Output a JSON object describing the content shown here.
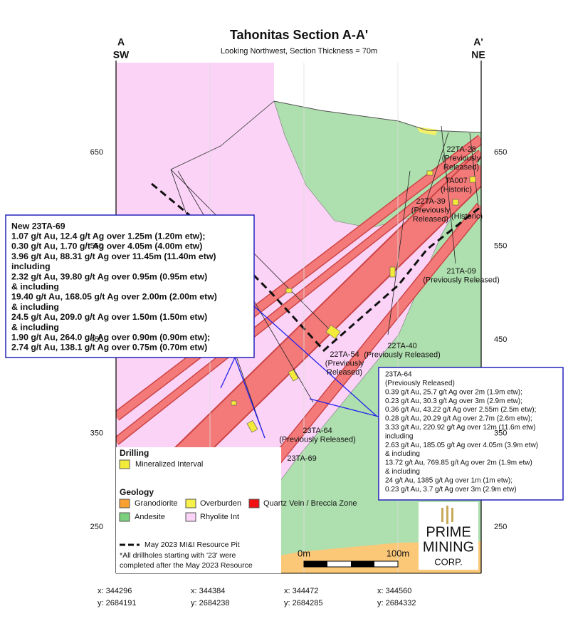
{
  "title": "Tahonitas Section A-A'",
  "subtitle": "Looking Northwest, Section Thickness = 70m",
  "section_ends": {
    "left": {
      "label": "A",
      "direction": "SW"
    },
    "right": {
      "label": "A'",
      "direction": "NE"
    }
  },
  "elevations": [
    "650",
    "550",
    "450",
    "350",
    "250"
  ],
  "coordinates": [
    {
      "x": "x: 344296",
      "y": "y: 2684191"
    },
    {
      "x": "x: 344384",
      "y": "y: 2684238"
    },
    {
      "x": "x: 344472",
      "y": "y: 2684285"
    },
    {
      "x": "x: 344560",
      "y": "y: 2684332"
    }
  ],
  "drill_holes": [
    {
      "lines": [
        "22TA-28",
        "(Previously",
        "Released)"
      ]
    },
    {
      "lines": [
        "TA007",
        "(Historic)"
      ]
    },
    {
      "lines": [
        "22TA-39",
        "(Previously",
        "Released)"
      ]
    },
    {
      "lines": [
        "(Historic)"
      ]
    },
    {
      "lines": [
        "21TA-09",
        "(Previously Released)"
      ]
    },
    {
      "lines": [
        "22TA-40",
        "(Previously Released)"
      ]
    },
    {
      "lines": [
        "22TA-54",
        "(Previously",
        "Released)"
      ]
    },
    {
      "lines": [
        "23TA-64",
        "(Previously Released)"
      ]
    },
    {
      "lines": [
        "23TA-69"
      ]
    }
  ],
  "callouts": [
    {
      "lines": [
        {
          "text": "New 23TA-69",
          "color": "#000000"
        },
        {
          "text": "1.07 g/t Au, 12.4 g/t Ag over 1.25m (1.20m etw);",
          "color": "#000000"
        },
        {
          "text": "0.30 g/t Au, 1.70 g/t Ag over 4.05m (4.00m etw)",
          "color": "#000000"
        },
        {
          "text": "3.96 g/t Au, 88.31 g/t Ag over 11.45m (11.40m etw)",
          "color": "#e00000"
        },
        {
          "text": "including",
          "color": "#e00000"
        },
        {
          "text": "2.32 g/t Au, 39.80 g/t Ag over 0.95m (0.95m etw)",
          "color": "#e00000"
        },
        {
          "text": "& including",
          "color": "#e00000"
        },
        {
          "text": "19.40 g/t Au, 168.05 g/t Ag over 2.00m (2.00m etw)",
          "color": "#e00000"
        },
        {
          "text": "& including",
          "color": "#e00000"
        },
        {
          "text": "24.5 g/t Au, 209.0 g/t Ag over 1.50m (1.50m etw)",
          "color": "#e00000"
        },
        {
          "text": "& including",
          "color": "#e00000"
        },
        {
          "text": "1.90 g/t Au, 264.0 g/t Ag over 0.90m (0.90m etw);",
          "color": "#e00000"
        },
        {
          "text": "2.74 g/t Au, 138.1 g/t Ag over 0.75m (0.70m etw)",
          "color": "#000000"
        }
      ]
    },
    {
      "lines": [
        {
          "text": "23TA-64",
          "color": "#000000"
        },
        {
          "text": "(Previously Released)",
          "color": "#000000"
        },
        {
          "text": "0.39 g/t Au, 25.7 g/t Ag over 2m (1.9m etw);",
          "color": "#000000"
        },
        {
          "text": "0.23 g/t Au, 30.3 g/t Ag over 3m (2.9m etw);",
          "color": "#000000"
        },
        {
          "text": "0.36 g/t Au, 43.22 g/t Ag over 2.55m (2.5m etw);",
          "color": "#000000"
        },
        {
          "text": "0.28 g/t Au, 20.29 g/t Ag over 2.7m (2.6m etw);",
          "color": "#000000"
        },
        {
          "text": "3.33 g/t Au, 220.92 g/t Ag over 12m (11.6m etw)",
          "color": "#000000"
        },
        {
          "text": "including",
          "color": "#000000"
        },
        {
          "text": "2.63 g/t Au, 185.05 g/t Ag over 4.05m (3.9m etw)",
          "color": "#000000"
        },
        {
          "text": "& including",
          "color": "#000000"
        },
        {
          "text": "13.72 g/t Au, 769.85 g/t Ag over 2m (1.9m etw)",
          "color": "#000000"
        },
        {
          "text": "& including",
          "color": "#000000"
        },
        {
          "text": "24 g/t Au, 1385 g/t Ag over 1m (1m etw);",
          "color": "#000000"
        },
        {
          "text": "0.23 g/t Au, 3.7 g/t Ag over 3m (2.9m etw)",
          "color": "#000000"
        }
      ]
    }
  ],
  "legend": {
    "drilling_heading": "Drilling",
    "mineralized_interval": "Mineralized Interval",
    "geology_heading": "Geology",
    "granodiorite": "Granodiorite",
    "overburden": "Overburden",
    "quartz_vein": "Quartz Vein / Breccia Zone",
    "andesite": "Andesite",
    "rhyolite": "Rhyolite Int",
    "resource_pit": "May 2023 MI&I Resource Pit",
    "note": [
      "*All drillholes starting with '23' were",
      "completed after the May 2023 Resource"
    ]
  },
  "scale": {
    "start": "0m",
    "end": "100m"
  },
  "logo": [
    "PRIME",
    "MINING",
    "CORP."
  ]
}
